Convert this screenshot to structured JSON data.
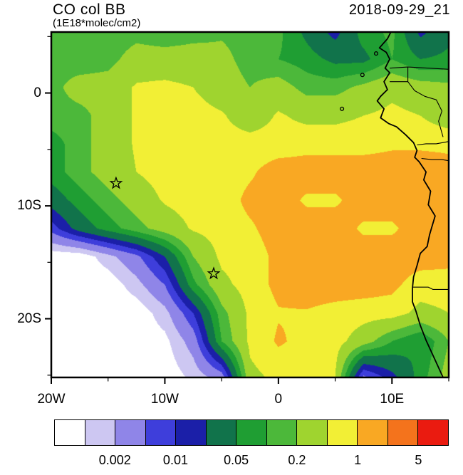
{
  "header": {
    "title": "CO col BB",
    "subtitle": "(1E18*molec/cm2)",
    "timestamp": "2018-09-29_21"
  },
  "chart_data": {
    "type": "heatmap",
    "title": "CO col BB",
    "units": "1E18*molec/cm2",
    "timestamp": "2018-09-29_21",
    "extent": {
      "lon_min": -20,
      "lon_max": 15,
      "lat_min": -25.2,
      "lat_max": 5.4
    },
    "x_axis": {
      "ticks": [
        {
          "lon": -20,
          "label": "20W"
        },
        {
          "lon": -10,
          "label": "10W"
        },
        {
          "lon": 0,
          "label": "0"
        },
        {
          "lon": 10,
          "label": "10E"
        }
      ],
      "minor_ticks": [
        -15,
        -5,
        5,
        15
      ]
    },
    "y_axis": {
      "ticks": [
        {
          "lat": 0,
          "label": "0"
        },
        {
          "lat": -10,
          "label": "10S"
        },
        {
          "lat": -20,
          "label": "20S"
        }
      ],
      "minor_ticks": [
        5,
        -5,
        -15,
        -25
      ]
    },
    "levels": [
      0.001,
      0.002,
      0.005,
      0.01,
      0.02,
      0.05,
      0.1,
      0.2,
      0.5,
      1,
      2,
      5
    ],
    "palette": [
      "#ffffff",
      "#cdc7f2",
      "#8f85e8",
      "#3e3edb",
      "#1b1fa8",
      "#11734b",
      "#1f9e33",
      "#4cb83a",
      "#9fd42f",
      "#f2ef35",
      "#f9a823",
      "#f4731c",
      "#ea1b10"
    ],
    "colorbar_labels": [
      {
        "boundary": 2,
        "text": "0.002"
      },
      {
        "boundary": 4,
        "text": "0.01"
      },
      {
        "boundary": 6,
        "text": "0.05"
      },
      {
        "boundary": 8,
        "text": "0.2"
      },
      {
        "boundary": 10,
        "text": "1"
      },
      {
        "boundary": 12,
        "text": "5"
      }
    ],
    "grid": {
      "lons": [
        -20,
        -17.5,
        -15,
        -12.5,
        -10,
        -7.5,
        -5,
        -2.5,
        0,
        2.5,
        5,
        7.5,
        10,
        12.5,
        15
      ],
      "lats": [
        5.4,
        3,
        0.5,
        -2,
        -4.5,
        -7,
        -9.5,
        -12,
        -14.5,
        -17,
        -19.5,
        -22,
        -25.2
      ],
      "values_1e18_molec_cm2": [
        [
          0.15,
          0.15,
          0.12,
          0.15,
          0.12,
          0.15,
          0.18,
          0.15,
          0.12,
          0.04,
          0.015,
          0.07,
          0.12,
          0.016,
          0.04
        ],
        [
          0.15,
          0.12,
          0.15,
          0.3,
          0.3,
          0.3,
          0.25,
          0.15,
          0.1,
          0.07,
          0.04,
          0.04,
          0.1,
          0.05,
          0.06
        ],
        [
          0.15,
          0.3,
          0.3,
          0.55,
          0.6,
          0.5,
          0.3,
          0.2,
          0.3,
          0.15,
          0.15,
          0.25,
          0.4,
          0.3,
          0.25
        ],
        [
          0.15,
          0.15,
          0.3,
          0.55,
          0.7,
          0.7,
          0.55,
          0.3,
          0.55,
          0.4,
          0.4,
          0.5,
          0.6,
          0.5,
          0.3
        ],
        [
          0.07,
          0.15,
          0.3,
          0.55,
          0.7,
          0.7,
          0.7,
          0.7,
          0.7,
          0.8,
          0.8,
          0.8,
          0.9,
          0.9,
          0.9
        ],
        [
          0.07,
          0.15,
          0.3,
          0.5,
          0.7,
          0.7,
          0.7,
          0.9,
          1.4,
          1.4,
          1.4,
          1.4,
          1.4,
          1.4,
          1.2
        ],
        [
          0.03,
          0.07,
          0.15,
          0.3,
          0.55,
          0.7,
          0.7,
          1.2,
          1.4,
          0.9,
          0.9,
          1.4,
          1.4,
          1.4,
          1.4
        ],
        [
          0.007,
          0.03,
          0.07,
          0.15,
          0.3,
          0.55,
          0.7,
          0.9,
          1.4,
          1.4,
          1.4,
          0.9,
          0.9,
          1.4,
          1.4
        ],
        [
          0.0006,
          0.0006,
          0.0015,
          0.004,
          0.02,
          0.2,
          0.6,
          0.7,
          1.2,
          1.4,
          1.4,
          1.4,
          1.4,
          1.4,
          1.3
        ],
        [
          0.0006,
          0.0006,
          0.0006,
          0.0015,
          0.005,
          0.08,
          0.4,
          0.7,
          1.2,
          1.4,
          1.4,
          1.4,
          1.2,
          0.7,
          0.7
        ],
        [
          0.0006,
          0.0006,
          0.0006,
          0.0006,
          0.0015,
          0.01,
          0.15,
          0.6,
          0.95,
          0.95,
          0.8,
          0.7,
          0.7,
          0.4,
          0.5
        ],
        [
          0.0006,
          0.0006,
          0.0006,
          0.0006,
          0.0008,
          0.003,
          0.1,
          0.6,
          1.1,
          0.8,
          0.7,
          0.3,
          0.1,
          0.05,
          0.2
        ],
        [
          0.0006,
          0.0006,
          0.0006,
          0.0006,
          0.0006,
          0.0012,
          0.003,
          0.4,
          0.6,
          0.7,
          0.5,
          0.004,
          0.015,
          0.07,
          0.3
        ]
      ]
    },
    "markers": {
      "stars": [
        [
          -14.3,
          -8.0
        ],
        [
          -5.7,
          -16.0
        ]
      ]
    },
    "map": {
      "coastline": [
        [
          9.9,
          5.4
        ],
        [
          9.6,
          4.8
        ],
        [
          8.9,
          4.0
        ],
        [
          9.5,
          3.6
        ],
        [
          9.8,
          3.0
        ],
        [
          9.4,
          2.2
        ],
        [
          9.8,
          1.8
        ],
        [
          9.3,
          1.0
        ],
        [
          9.6,
          0.3
        ],
        [
          9.0,
          -0.3
        ],
        [
          8.7,
          -0.7
        ],
        [
          9.3,
          -1.4
        ],
        [
          9.0,
          -2.2
        ],
        [
          9.7,
          -2.7
        ],
        [
          10.4,
          -3.0
        ],
        [
          11.2,
          -3.7
        ],
        [
          11.9,
          -4.4
        ],
        [
          12.2,
          -5.1
        ],
        [
          12.0,
          -5.7
        ],
        [
          12.4,
          -6.1
        ],
        [
          13.0,
          -7.0
        ],
        [
          12.8,
          -7.7
        ],
        [
          13.4,
          -8.7
        ],
        [
          13.2,
          -9.9
        ],
        [
          13.8,
          -10.9
        ],
        [
          13.5,
          -11.9
        ],
        [
          13.3,
          -12.6
        ],
        [
          13.1,
          -13.6
        ],
        [
          12.5,
          -14.2
        ],
        [
          12.2,
          -15.3
        ],
        [
          11.9,
          -16.3
        ],
        [
          11.8,
          -17.3
        ],
        [
          11.8,
          -18.5
        ],
        [
          12.1,
          -19.3
        ],
        [
          12.5,
          -20.6
        ],
        [
          13.0,
          -21.9
        ],
        [
          13.5,
          -23.0
        ],
        [
          14.0,
          -24.1
        ],
        [
          14.5,
          -25.2
        ]
      ],
      "borders": [
        [
          [
            9.8,
            2.2
          ],
          [
            11.4,
            2.3
          ],
          [
            13.2,
            2.2
          ],
          [
            15,
            2.1
          ]
        ],
        [
          [
            9.8,
            1.0
          ],
          [
            11.4,
            1.0
          ],
          [
            11.4,
            2.3
          ]
        ],
        [
          [
            11.4,
            1.0
          ],
          [
            12.0,
            0.2
          ],
          [
            12.9,
            -0.3
          ],
          [
            13.9,
            -0.6
          ],
          [
            14.4,
            -1.6
          ],
          [
            14.1,
            -2.5
          ],
          [
            14.5,
            -3.9
          ]
        ],
        [
          [
            12.2,
            -4.6
          ],
          [
            13.0,
            -4.5
          ],
          [
            13.9,
            -4.5
          ],
          [
            15,
            -4.3
          ]
        ],
        [
          [
            12.6,
            -5.8
          ],
          [
            13.5,
            -5.9
          ],
          [
            14.4,
            -5.9
          ],
          [
            15,
            -6.0
          ]
        ],
        [
          [
            11.8,
            -17.2
          ],
          [
            13.2,
            -17.2
          ],
          [
            13.6,
            -17.4
          ],
          [
            15,
            -17.4
          ]
        ]
      ],
      "islands": [
        [
          8.6,
          3.5
        ],
        [
          7.4,
          1.6
        ],
        [
          5.6,
          -1.4
        ]
      ]
    }
  }
}
